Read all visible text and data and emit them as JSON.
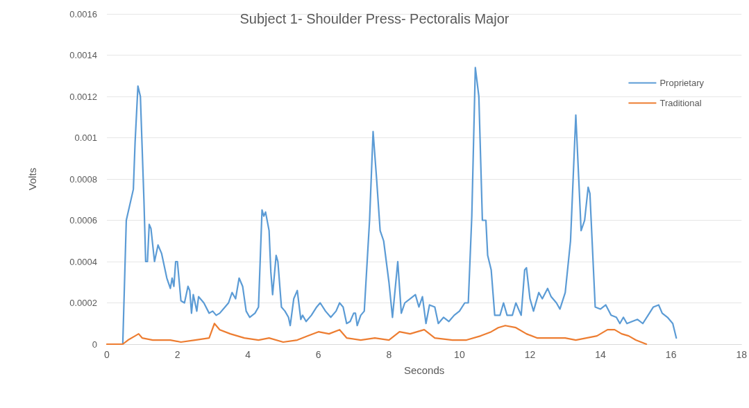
{
  "chart_data": {
    "type": "line",
    "title": "Subject 1- Shoulder Press- Pectoralis Major",
    "xlabel": "Seconds",
    "ylabel": "Volts",
    "xlim": [
      0,
      18
    ],
    "xticks": [
      0,
      2,
      4,
      6,
      8,
      10,
      12,
      14,
      16,
      18
    ],
    "ylim": [
      0,
      0.0016
    ],
    "yticks": [
      0,
      0.0002,
      0.0004,
      0.0006,
      0.0008,
      0.001,
      0.0012,
      0.0014,
      0.0016
    ],
    "grid": "y",
    "legend": "top right",
    "marker": "none",
    "line_style": "solid",
    "series": [
      {
        "name": "Proprietary",
        "color": "#5b9bd5",
        "x": [
          0.45,
          0.55,
          0.75,
          0.8,
          0.88,
          0.95,
          1.05,
          1.1,
          1.15,
          1.2,
          1.25,
          1.35,
          1.45,
          1.55,
          1.7,
          1.8,
          1.85,
          1.9,
          1.95,
          2.0,
          2.1,
          2.2,
          2.3,
          2.35,
          2.4,
          2.45,
          2.55,
          2.6,
          2.75,
          2.9,
          3.0,
          3.1,
          3.2,
          3.35,
          3.45,
          3.55,
          3.65,
          3.75,
          3.85,
          3.95,
          4.05,
          4.2,
          4.3,
          4.4,
          4.45,
          4.5,
          4.6,
          4.65,
          4.7,
          4.8,
          4.85,
          4.95,
          5.05,
          5.15,
          5.2,
          5.3,
          5.4,
          5.5,
          5.55,
          5.65,
          5.8,
          5.95,
          6.05,
          6.2,
          6.35,
          6.5,
          6.6,
          6.7,
          6.8,
          6.9,
          7.0,
          7.05,
          7.1,
          7.2,
          7.3,
          7.45,
          7.55,
          7.65,
          7.75,
          7.85,
          8.0,
          8.1,
          8.25,
          8.35,
          8.45,
          8.6,
          8.75,
          8.85,
          8.95,
          9.05,
          9.15,
          9.3,
          9.4,
          9.55,
          9.7,
          9.85,
          10.0,
          10.15,
          10.25,
          10.35,
          10.45,
          10.55,
          10.65,
          10.75,
          10.8,
          10.9,
          11.0,
          11.15,
          11.25,
          11.35,
          11.5,
          11.6,
          11.75,
          11.85,
          11.9,
          12.0,
          12.1,
          12.25,
          12.35,
          12.5,
          12.6,
          12.75,
          12.85,
          13.0,
          13.15,
          13.3,
          13.45,
          13.55,
          13.65,
          13.7,
          13.85,
          14.0,
          14.15,
          14.3,
          14.45,
          14.55,
          14.65,
          14.75,
          14.9,
          15.05,
          15.2,
          15.35,
          15.5,
          15.65,
          15.75,
          15.9,
          16.05,
          16.15
        ],
        "values": [
          0,
          0.0006,
          0.00075,
          0.00098,
          0.00125,
          0.0012,
          0.0007,
          0.0004,
          0.0004,
          0.00058,
          0.00056,
          0.0004,
          0.00048,
          0.00044,
          0.00032,
          0.00027,
          0.00032,
          0.00028,
          0.0004,
          0.0004,
          0.00021,
          0.0002,
          0.00028,
          0.00026,
          0.00015,
          0.00024,
          0.00016,
          0.00023,
          0.0002,
          0.00015,
          0.00016,
          0.00014,
          0.00015,
          0.00018,
          0.0002,
          0.00025,
          0.00022,
          0.00032,
          0.00028,
          0.00016,
          0.00013,
          0.00015,
          0.00018,
          0.00065,
          0.00062,
          0.00064,
          0.00055,
          0.00035,
          0.00024,
          0.00043,
          0.0004,
          0.00018,
          0.00016,
          0.00013,
          9e-05,
          0.00022,
          0.00026,
          0.00012,
          0.00014,
          0.00011,
          0.00014,
          0.00018,
          0.0002,
          0.00016,
          0.00013,
          0.00016,
          0.0002,
          0.00018,
          0.0001,
          0.00011,
          0.00015,
          0.00015,
          9e-05,
          0.00014,
          0.00016,
          0.0006,
          0.00103,
          0.0008,
          0.00055,
          0.0005,
          0.0003,
          0.00013,
          0.0004,
          0.00015,
          0.0002,
          0.00022,
          0.00024,
          0.00018,
          0.00023,
          0.0001,
          0.00019,
          0.00018,
          0.0001,
          0.00013,
          0.00011,
          0.00014,
          0.00016,
          0.0002,
          0.0002,
          0.00062,
          0.00134,
          0.0012,
          0.0006,
          0.0006,
          0.00043,
          0.00036,
          0.00014,
          0.00014,
          0.0002,
          0.00014,
          0.00014,
          0.0002,
          0.00014,
          0.00036,
          0.00037,
          0.00022,
          0.00016,
          0.00025,
          0.00022,
          0.00027,
          0.00023,
          0.0002,
          0.00017,
          0.00025,
          0.0005,
          0.00111,
          0.00055,
          0.0006,
          0.00076,
          0.00073,
          0.00018,
          0.00017,
          0.00019,
          0.00014,
          0.00013,
          0.0001,
          0.00013,
          0.0001,
          0.00011,
          0.00012,
          0.0001,
          0.00014,
          0.00018,
          0.00019,
          0.00015,
          0.00013,
          0.0001,
          3e-05
        ]
      },
      {
        "name": "Traditional",
        "color": "#ed7d31",
        "x": [
          0,
          0.45,
          0.6,
          0.8,
          0.9,
          1.0,
          1.3,
          1.8,
          2.1,
          2.5,
          2.9,
          3.05,
          3.2,
          3.5,
          3.9,
          4.3,
          4.6,
          5.0,
          5.4,
          5.7,
          6.0,
          6.3,
          6.6,
          6.8,
          7.2,
          7.6,
          8.0,
          8.3,
          8.6,
          9.0,
          9.3,
          9.8,
          10.2,
          10.6,
          10.9,
          11.1,
          11.3,
          11.6,
          11.9,
          12.2,
          12.6,
          13.0,
          13.3,
          13.6,
          13.9,
          14.2,
          14.4,
          14.6,
          14.8,
          15.0,
          15.3
        ],
        "values": [
          0,
          0,
          2e-05,
          4e-05,
          5e-05,
          3e-05,
          2e-05,
          2e-05,
          1e-05,
          2e-05,
          3e-05,
          0.0001,
          7e-05,
          5e-05,
          3e-05,
          2e-05,
          3e-05,
          1e-05,
          2e-05,
          4e-05,
          6e-05,
          5e-05,
          7e-05,
          3e-05,
          2e-05,
          3e-05,
          2e-05,
          6e-05,
          5e-05,
          7e-05,
          3e-05,
          2e-05,
          2e-05,
          4e-05,
          6e-05,
          8e-05,
          9e-05,
          8e-05,
          5e-05,
          3e-05,
          3e-05,
          3e-05,
          2e-05,
          3e-05,
          4e-05,
          7e-05,
          7e-05,
          5e-05,
          4e-05,
          2e-05,
          0
        ]
      }
    ]
  }
}
